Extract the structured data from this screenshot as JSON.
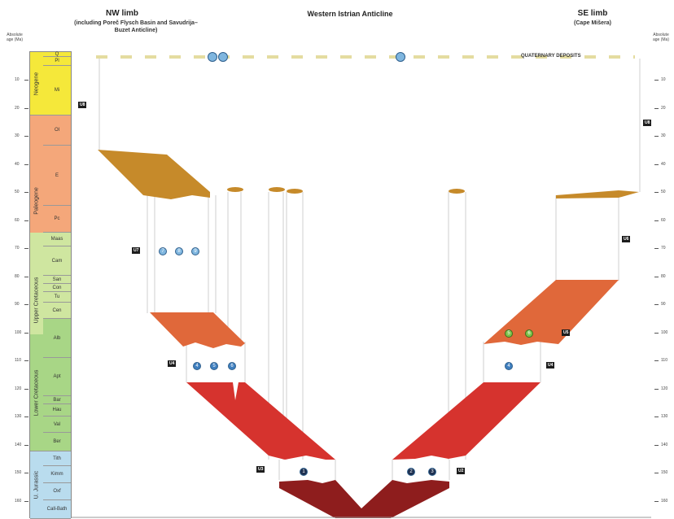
{
  "header": {
    "nw_title": "NW limb",
    "nw_sub": "(including Poreč Flysch Basin and Savudrija–Buzet Anticline)",
    "center_title": "Western Istrian Anticline",
    "se_title": "SE limb",
    "se_sub": "(Cape Mišera)"
  },
  "axis": {
    "left_label": "Absolute age (Ma)",
    "right_label": "Absolute age (Ma)",
    "ticks": [
      "10",
      "20",
      "30",
      "40",
      "50",
      "60",
      "70",
      "80",
      "90",
      "100",
      "110",
      "120",
      "130",
      "140",
      "150",
      "160"
    ]
  },
  "epochs": [
    "Neogene",
    "Paleogene",
    "Upper Cretaceous",
    "Lower Cretaceous",
    "U. Jurassic"
  ],
  "stages": [
    "Q",
    "Pl",
    "Mi",
    "Ol",
    "E",
    "Pc",
    "Maas",
    "Cam",
    "San",
    "Con",
    "Tu",
    "Cen",
    "Alb",
    "Apt",
    "Bar",
    "Hau",
    "Val",
    "Ber",
    "Tith",
    "Kimm",
    "Oxf",
    "Call-Bath"
  ],
  "quaternary_label": "QUATERNARY DEPOSITS",
  "tags": [
    "U8",
    "U8",
    "U7",
    "U6",
    "U5",
    "U4",
    "U4",
    "U3",
    "U2",
    "U2"
  ],
  "circles": [
    "7",
    "8",
    "9",
    "4",
    "5",
    "6",
    "1",
    "2",
    "3",
    "4",
    "5",
    "6",
    "7"
  ],
  "colors": {
    "paleogene_unit": "#c68a2a",
    "upper_cret_unit": "#e0683a",
    "lower_cret_unit": "#d6332e",
    "jurassic_unit": "#8e1d1d",
    "neogene_col": "#f5e83a",
    "paleogene_col": "#f4a77a",
    "upper_cret_col": "#cfe6a0",
    "lower_cret_col": "#a8d686",
    "jurassic_col": "#b9dcee",
    "quaternary_dash": "#e4dca0",
    "circle_blue": "#7fb6df",
    "circle_green": "#7cc24a"
  }
}
